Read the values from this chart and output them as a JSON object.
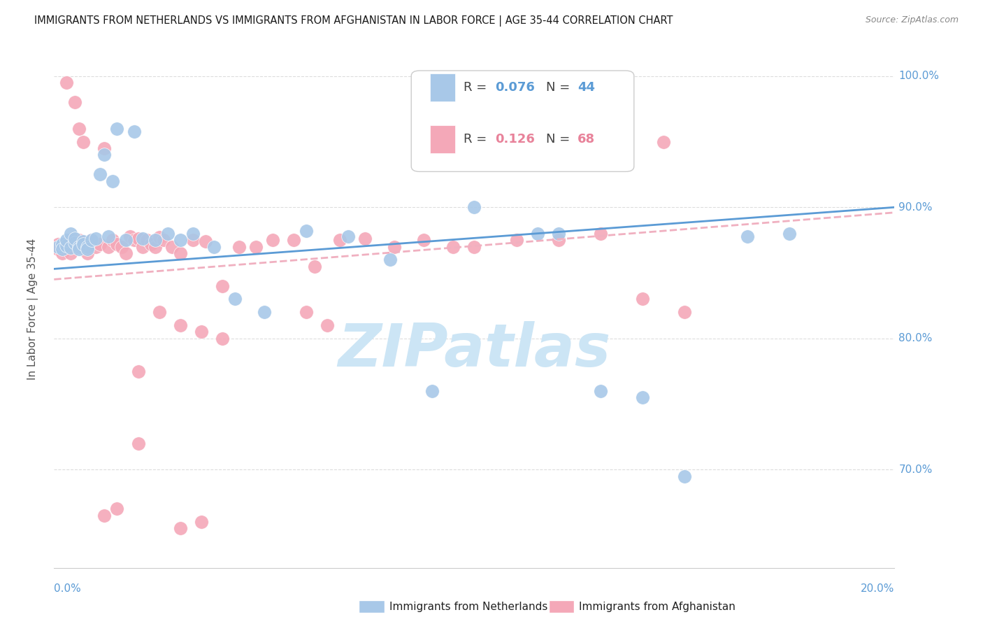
{
  "title": "IMMIGRANTS FROM NETHERLANDS VS IMMIGRANTS FROM AFGHANISTAN IN LABOR FORCE | AGE 35-44 CORRELATION CHART",
  "source": "Source: ZipAtlas.com",
  "ylabel": "In Labor Force | Age 35-44",
  "xmin": 0.0,
  "xmax": 0.2,
  "ymin": 0.625,
  "ymax": 1.02,
  "color_netherlands": "#a8c8e8",
  "color_afghanistan": "#f4a8b8",
  "color_netherlands_line": "#5b9bd5",
  "color_afghanistan_line": "#f0b0c0",
  "watermark_color": "#cce5f5",
  "background_color": "#ffffff",
  "grid_color": "#dddddd",
  "nl_x": [
    0.001,
    0.002,
    0.002,
    0.003,
    0.003,
    0.004,
    0.004,
    0.005,
    0.005,
    0.006,
    0.006,
    0.007,
    0.007,
    0.008,
    0.008,
    0.009,
    0.01,
    0.011,
    0.012,
    0.013,
    0.014,
    0.015,
    0.017,
    0.019,
    0.021,
    0.024,
    0.027,
    0.03,
    0.033,
    0.038,
    0.043,
    0.05,
    0.06,
    0.07,
    0.08,
    0.09,
    0.1,
    0.115,
    0.13,
    0.15,
    0.165,
    0.175,
    0.14,
    0.12
  ],
  "nl_y": [
    0.87,
    0.872,
    0.868,
    0.871,
    0.875,
    0.869,
    0.88,
    0.873,
    0.876,
    0.87,
    0.868,
    0.874,
    0.872,
    0.87,
    0.868,
    0.875,
    0.876,
    0.925,
    0.94,
    0.878,
    0.92,
    0.96,
    0.875,
    0.958,
    0.876,
    0.875,
    0.88,
    0.875,
    0.88,
    0.87,
    0.83,
    0.82,
    0.882,
    0.878,
    0.86,
    0.76,
    0.9,
    0.88,
    0.76,
    0.695,
    0.878,
    0.88,
    0.755,
    0.88
  ],
  "af_x": [
    0.001,
    0.001,
    0.002,
    0.002,
    0.003,
    0.003,
    0.004,
    0.004,
    0.005,
    0.005,
    0.006,
    0.006,
    0.007,
    0.007,
    0.008,
    0.008,
    0.009,
    0.01,
    0.011,
    0.012,
    0.013,
    0.014,
    0.015,
    0.016,
    0.017,
    0.018,
    0.019,
    0.02,
    0.021,
    0.022,
    0.023,
    0.024,
    0.025,
    0.026,
    0.028,
    0.03,
    0.033,
    0.036,
    0.04,
    0.044,
    0.048,
    0.052,
    0.057,
    0.062,
    0.068,
    0.074,
    0.081,
    0.088,
    0.095,
    0.1,
    0.11,
    0.12,
    0.13,
    0.14,
    0.15,
    0.02,
    0.025,
    0.03,
    0.035,
    0.04,
    0.06,
    0.065,
    0.03,
    0.035,
    0.015,
    0.012,
    0.02,
    0.145
  ],
  "af_y": [
    0.872,
    0.868,
    0.87,
    0.865,
    0.995,
    0.87,
    0.875,
    0.865,
    0.98,
    0.872,
    0.96,
    0.875,
    0.95,
    0.87,
    0.87,
    0.865,
    0.875,
    0.87,
    0.872,
    0.945,
    0.87,
    0.875,
    0.872,
    0.87,
    0.865,
    0.878,
    0.875,
    0.876,
    0.87,
    0.875,
    0.872,
    0.87,
    0.877,
    0.875,
    0.87,
    0.865,
    0.875,
    0.874,
    0.84,
    0.87,
    0.87,
    0.875,
    0.875,
    0.855,
    0.875,
    0.876,
    0.87,
    0.875,
    0.87,
    0.87,
    0.875,
    0.875,
    0.88,
    0.83,
    0.82,
    0.775,
    0.82,
    0.81,
    0.805,
    0.8,
    0.82,
    0.81,
    0.655,
    0.66,
    0.67,
    0.665,
    0.72,
    0.95
  ]
}
